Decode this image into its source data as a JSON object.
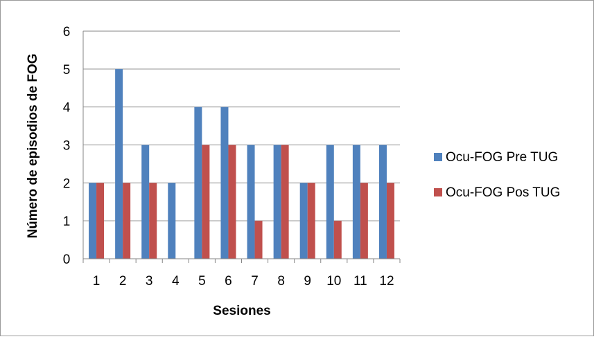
{
  "chart_data": {
    "type": "bar",
    "title": "",
    "xlabel": "Sesiones",
    "ylabel": "Número de episodios de FOG",
    "categories": [
      "1",
      "2",
      "3",
      "4",
      "5",
      "6",
      "7",
      "8",
      "9",
      "10",
      "11",
      "12"
    ],
    "series": [
      {
        "name": "Ocu-FOG Pre TUG",
        "values": [
          2,
          5,
          3,
          2,
          4,
          4,
          3,
          3,
          2,
          3,
          3,
          3
        ],
        "color": "#4F81BD"
      },
      {
        "name": "Ocu-FOG Pos TUG",
        "values": [
          2,
          2,
          2,
          0,
          3,
          3,
          1,
          3,
          2,
          1,
          2,
          2
        ],
        "color": "#C0504D"
      }
    ],
    "ylim": [
      0,
      6
    ],
    "yticks": [
      "0",
      "1",
      "2",
      "3",
      "4",
      "5",
      "6"
    ],
    "grid": true,
    "legend_position": "right"
  }
}
